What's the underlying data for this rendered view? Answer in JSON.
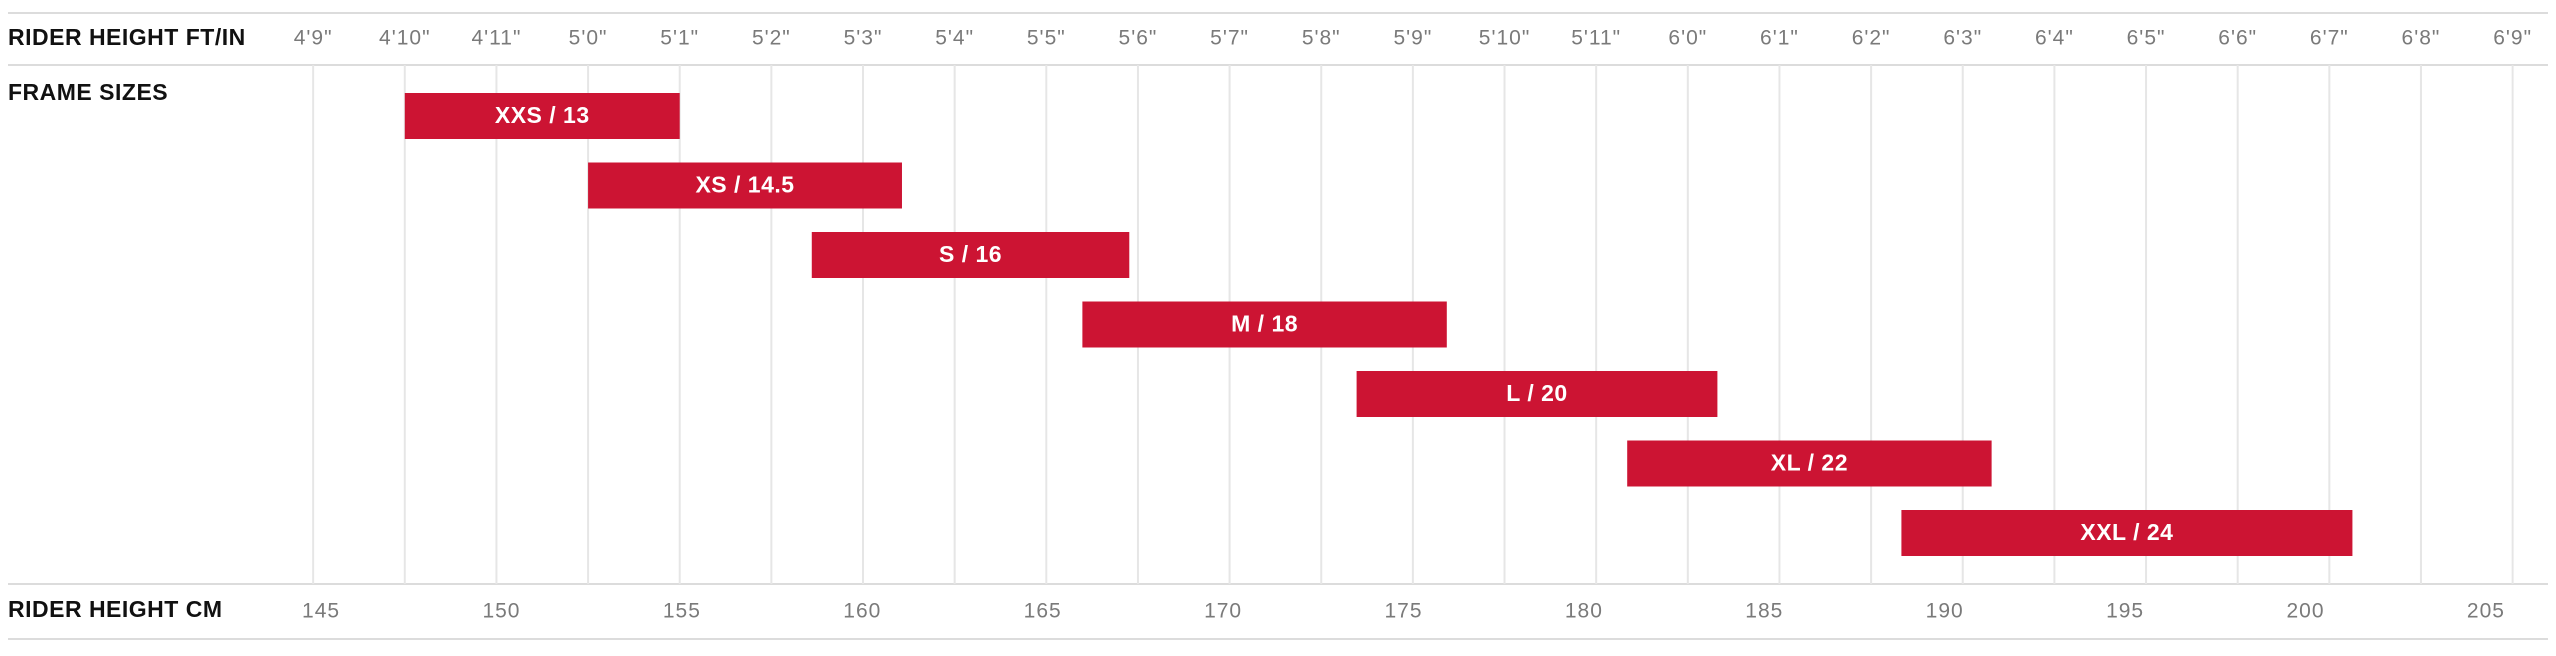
{
  "chart_data": {
    "type": "range_bar",
    "top_axis_label": "RIDER HEIGHT FT/IN",
    "row_label": "FRAME SIZES",
    "bottom_axis_label": "RIDER HEIGHT CM",
    "categories": [
      "XXS / 13",
      "XS / 14.5",
      "S / 16",
      "M / 18",
      "L / 20",
      "XL / 22",
      "XXL / 24"
    ],
    "start": [
      147.32,
      152.4,
      158.6,
      166.1,
      173.7,
      181.2,
      188.8
    ],
    "end": [
      154.94,
      161.1,
      167.4,
      176.2,
      183.7,
      191.3,
      201.3
    ],
    "color": "#cc1433",
    "xlim": [
      144,
      206
    ],
    "xticks": [
      145,
      150,
      155,
      160,
      165,
      170,
      175,
      180,
      185,
      190,
      195,
      200,
      205
    ],
    "x2ticks": [
      {
        "value": 144.78,
        "label": "4'9\""
      },
      {
        "value": 147.32,
        "label": "4'10\""
      },
      {
        "value": 149.86,
        "label": "4'11\""
      },
      {
        "value": 152.4,
        "label": "5'0\""
      },
      {
        "value": 154.94,
        "label": "5'1\""
      },
      {
        "value": 157.48,
        "label": "5'2\""
      },
      {
        "value": 160.02,
        "label": "5'3\""
      },
      {
        "value": 162.56,
        "label": "5'4\""
      },
      {
        "value": 165.1,
        "label": "5'5\""
      },
      {
        "value": 167.64,
        "label": "5'6\""
      },
      {
        "value": 170.18,
        "label": "5'7\""
      },
      {
        "value": 172.72,
        "label": "5'8\""
      },
      {
        "value": 175.26,
        "label": "5'9\""
      },
      {
        "value": 177.8,
        "label": "5'10\""
      },
      {
        "value": 180.34,
        "label": "5'11\""
      },
      {
        "value": 182.88,
        "label": "6'0\""
      },
      {
        "value": 185.42,
        "label": "6'1\""
      },
      {
        "value": 187.96,
        "label": "6'2\""
      },
      {
        "value": 190.5,
        "label": "6'3\""
      },
      {
        "value": 193.04,
        "label": "6'4\""
      },
      {
        "value": 195.58,
        "label": "6'5\""
      },
      {
        "value": 198.12,
        "label": "6'6\""
      },
      {
        "value": 200.66,
        "label": "6'7\""
      },
      {
        "value": 203.2,
        "label": "6'8\""
      },
      {
        "value": 205.74,
        "label": "6'9\""
      }
    ],
    "grid": true
  }
}
